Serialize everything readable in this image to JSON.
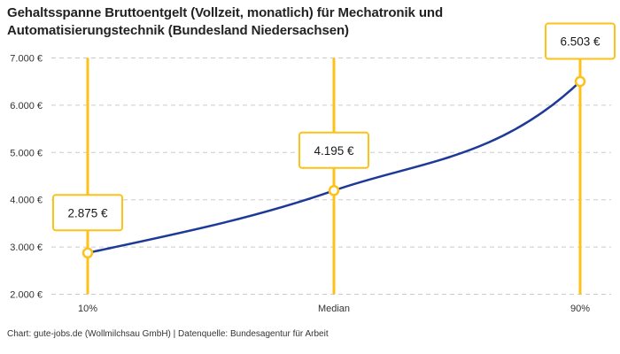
{
  "title": "Gehaltsspanne Bruttoentgelt (Vollzeit, monatlich) für Mechatronik und Automatisierungstechnik (Bundesland Niedersachsen)",
  "footer": "Chart: gute-jobs.de (Wollmilchsau GmbH) | Datenquelle: Bundesagentur für Arbeit",
  "chart_data": {
    "type": "line",
    "categories": [
      "10%",
      "Median",
      "90%"
    ],
    "values": [
      2875,
      4195,
      6503
    ],
    "point_labels": [
      "2.875 €",
      "4.195 €",
      "6.503 €"
    ],
    "title": "Gehaltsspanne Bruttoentgelt (Vollzeit, monatlich) für Mechatronik und Automatisierungstechnik (Bundesland Niedersachsen)",
    "xlabel": "",
    "ylabel": "",
    "ylim": [
      2000,
      7000
    ],
    "ytick_step": 1000,
    "ytick_labels": [
      "2.000 €",
      "3.000 €",
      "4.000 €",
      "5.000 €",
      "6.000 €",
      "7.000 €"
    ],
    "grid": "horizontal-dashed",
    "legend": "none",
    "colors": {
      "line": "#1E3A99",
      "marker": "#FDC117",
      "grid": "#CBCBCB",
      "label_box_bg": "#FFFFFF",
      "label_box_border": "#FDC117",
      "tick_text": "#333333"
    }
  }
}
